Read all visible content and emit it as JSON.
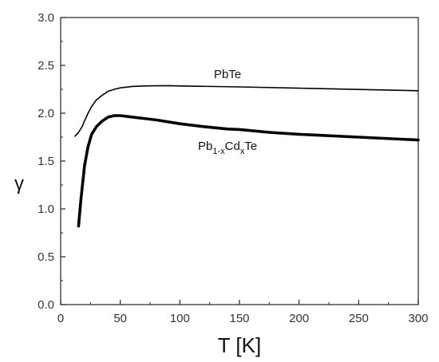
{
  "chart_data": {
    "type": "line",
    "title": "",
    "xlabel": "T [K]",
    "ylabel": "γ",
    "xlim": [
      0,
      300
    ],
    "ylim": [
      0.0,
      3.0
    ],
    "x_ticks": [
      "0",
      "50",
      "100",
      "150",
      "200",
      "250",
      "300"
    ],
    "y_ticks": [
      "0.0",
      "0.5",
      "1.0",
      "1.5",
      "2.0",
      "2.5",
      "3.0"
    ],
    "grid": false,
    "legend": "none",
    "series": [
      {
        "name": "PbTe",
        "color": "#000000",
        "x": [
          12,
          15,
          18,
          20,
          23,
          26,
          30,
          35,
          40,
          45,
          50,
          60,
          70,
          80,
          90,
          100,
          150,
          200,
          250,
          300
        ],
        "y": [
          1.76,
          1.8,
          1.86,
          1.92,
          2.0,
          2.07,
          2.14,
          2.19,
          2.23,
          2.25,
          2.265,
          2.28,
          2.285,
          2.287,
          2.288,
          2.285,
          2.275,
          2.262,
          2.248,
          2.235
        ]
      },
      {
        "name": "Pb1-xCdxTe",
        "color": "#000000",
        "x": [
          15,
          17,
          20,
          23,
          26,
          30,
          35,
          40,
          45,
          50,
          60,
          70,
          80,
          100,
          120,
          140,
          150,
          175,
          200,
          250,
          300
        ],
        "y": [
          0.82,
          1.1,
          1.45,
          1.65,
          1.78,
          1.86,
          1.92,
          1.96,
          1.975,
          1.975,
          1.96,
          1.945,
          1.93,
          1.89,
          1.86,
          1.835,
          1.83,
          1.8,
          1.78,
          1.75,
          1.72
        ]
      }
    ],
    "annotations": [
      {
        "series": "PbTe",
        "base": "PbTe"
      },
      {
        "series": "Pb1-xCdxTe",
        "parts": [
          {
            "text": "Pb",
            "sub": false
          },
          {
            "text": "1-x",
            "sub": true
          },
          {
            "text": "Cd",
            "sub": false
          },
          {
            "text": "x",
            "sub": true
          },
          {
            "text": "Te",
            "sub": false
          }
        ]
      }
    ]
  }
}
